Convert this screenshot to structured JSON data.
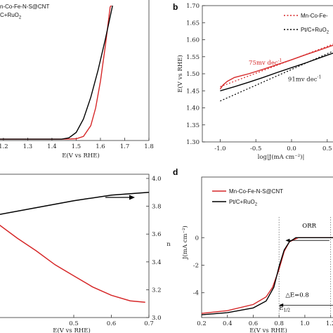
{
  "chart_data": [
    {
      "id": "a",
      "type": "line",
      "panel_letter": "",
      "xlabel": "E(V vs RHE)",
      "xticks": [
        "1.2",
        "1.3",
        "1.4",
        "1.5",
        "1.6",
        "1.7",
        "1.8"
      ],
      "xlim": [
        1.18,
        1.8
      ],
      "ylim": [
        0,
        100
      ],
      "legend": {
        "placement": "top-left",
        "entries": [
          {
            "text": "n-Co-Fe-N-S@CNT",
            "color": "#d62728",
            "dash": "solid",
            "subs": []
          },
          {
            "text": "C+RuO",
            "color": "#000000",
            "dash": "solid",
            "subs": [
              "2"
            ]
          }
        ]
      },
      "series": [
        {
          "color": "#d62728",
          "points": [
            [
              1.18,
              1
            ],
            [
              1.45,
              1
            ],
            [
              1.5,
              1.3
            ],
            [
              1.53,
              3
            ],
            [
              1.56,
              11
            ],
            [
              1.58,
              24
            ],
            [
              1.6,
              44
            ],
            [
              1.62,
              70
            ],
            [
              1.64,
              99
            ],
            [
              1.645,
              100
            ]
          ]
        },
        {
          "color": "#000000",
          "points": [
            [
              1.18,
              1
            ],
            [
              1.44,
              1
            ],
            [
              1.47,
              2
            ],
            [
              1.5,
              6
            ],
            [
              1.53,
              16
            ],
            [
              1.56,
              32
            ],
            [
              1.59,
              52
            ],
            [
              1.62,
              75
            ],
            [
              1.65,
              100
            ]
          ]
        }
      ],
      "grid": false
    },
    {
      "id": "b",
      "type": "line",
      "panel_letter": "b",
      "ylabel": "E(V vs RHE)",
      "xlabel": "log|J(mA cm⁻²)|",
      "yticks": [
        "1.30",
        "1.35",
        "1.40",
        "1.45",
        "1.50",
        "1.55",
        "1.60",
        "1.65",
        "1.70"
      ],
      "xticks": [
        "-1.0",
        "-0.5",
        "0.0",
        "0.5"
      ],
      "xlim": [
        -1.25,
        0.62
      ],
      "ylim": [
        1.3,
        1.7
      ],
      "legend": {
        "placement": "top-right",
        "entries": [
          {
            "text": "Mn-Co-Fe-",
            "color": "#d62728",
            "dash": "dot",
            "subs": []
          },
          {
            "text": "Pt/C+RuO",
            "color": "#000000",
            "dash": "dot",
            "subs": [
              "2"
            ]
          }
        ]
      },
      "annotations": [
        {
          "text": "75mv dec",
          "sup": "-1",
          "color": "#d62728",
          "x": -0.6,
          "y": 1.527
        },
        {
          "text": "91mv dec",
          "sup": "-1",
          "color": "#222222",
          "x": -0.05,
          "y": 1.478
        }
      ],
      "series": [
        {
          "color": "#d62728",
          "points": [
            [
              -1.0,
              1.455
            ],
            [
              -0.96,
              1.467
            ],
            [
              -0.9,
              1.478
            ],
            [
              -0.8,
              1.489
            ],
            [
              -0.6,
              1.5
            ],
            [
              -0.4,
              1.513
            ],
            [
              -0.2,
              1.527
            ],
            [
              0.0,
              1.541
            ],
            [
              0.2,
              1.556
            ],
            [
              0.4,
              1.57
            ],
            [
              0.6,
              1.585
            ]
          ]
        },
        {
          "color": "#000000",
          "points": [
            [
              -1.0,
              1.45
            ],
            [
              -0.8,
              1.462
            ],
            [
              -0.6,
              1.475
            ],
            [
              -0.4,
              1.489
            ],
            [
              -0.2,
              1.504
            ],
            [
              0.0,
              1.518
            ],
            [
              0.2,
              1.532
            ],
            [
              0.4,
              1.547
            ],
            [
              0.6,
              1.562
            ]
          ]
        }
      ],
      "grid": false
    },
    {
      "id": "c",
      "type": "line",
      "panel_letter": "",
      "xlabel": "E(V vs RHE)",
      "ylabel_right": "n",
      "xticks": [
        "0.5",
        "0.6",
        "0.7"
      ],
      "xlim": [
        0.3,
        0.7
      ],
      "yticks_right": [
        "3.0",
        "3.2",
        "3.4",
        "3.6",
        "3.8",
        "4.0"
      ],
      "ylim_right": [
        3.0,
        4.0
      ],
      "series": [
        {
          "color": "#000000",
          "points": [
            [
              0.3,
              3.74
            ],
            [
              0.4,
              3.79
            ],
            [
              0.5,
              3.84
            ],
            [
              0.6,
              3.88
            ],
            [
              0.7,
              3.9
            ]
          ]
        },
        {
          "color": "#d62728",
          "points": [
            [
              0.3,
              3.67
            ],
            [
              0.35,
              3.57
            ],
            [
              0.4,
              3.48
            ],
            [
              0.45,
              3.38
            ],
            [
              0.5,
              3.3
            ],
            [
              0.55,
              3.22
            ],
            [
              0.6,
              3.16
            ],
            [
              0.65,
              3.12
            ],
            [
              0.69,
              3.11
            ]
          ]
        }
      ],
      "grid": false
    },
    {
      "id": "d",
      "type": "line",
      "panel_letter": "d",
      "ylabel": "J(mA cm⁻²)",
      "xlabel": "E(V vs RHE)",
      "xticks": [
        "0.2",
        "0.4",
        "0.6",
        "0.8",
        "1.0",
        "1.2"
      ],
      "xlim": [
        0.2,
        1.24
      ],
      "ylim": [
        -5.8,
        4.4
      ],
      "yticks": [
        {
          "label": "0",
          "value": 0
        },
        {
          "label": "-2",
          "value": -2
        },
        {
          "label": "-4",
          "value": -4
        }
      ],
      "legend": {
        "placement": "top-left",
        "entries": [
          {
            "text": "Mn-Co-Fe-N-S@CNT",
            "color": "#d62728",
            "dash": "solid",
            "subs": []
          },
          {
            "text": "Pt/C+RuO",
            "color": "#000000",
            "dash": "solid",
            "subs": [
              "2"
            ]
          }
        ]
      },
      "annotations": [
        {
          "text": "ORR",
          "color": "#000000",
          "x": 0.98,
          "y": 0.72
        },
        {
          "text": "△E=0.8",
          "color": "#000000",
          "x": 0.85,
          "y": -4.3
        },
        {
          "text": "E",
          "sub": "1/2",
          "color": "#000000",
          "x": 0.8,
          "y": -5.25
        }
      ],
      "series": [
        {
          "color": "#d62728",
          "points": [
            [
              0.2,
              -5.5
            ],
            [
              0.4,
              -5.3
            ],
            [
              0.6,
              -4.85
            ],
            [
              0.7,
              -4.3
            ],
            [
              0.75,
              -3.6
            ],
            [
              0.8,
              -2.3
            ],
            [
              0.84,
              -1.0
            ],
            [
              0.88,
              -0.3
            ],
            [
              0.95,
              0
            ],
            [
              1.24,
              0
            ]
          ]
        },
        {
          "color": "#000000",
          "points": [
            [
              0.2,
              -5.6
            ],
            [
              0.4,
              -5.45
            ],
            [
              0.6,
              -5.1
            ],
            [
              0.7,
              -4.6
            ],
            [
              0.76,
              -3.6
            ],
            [
              0.8,
              -2.1
            ],
            [
              0.84,
              -0.9
            ],
            [
              0.88,
              -0.3
            ],
            [
              0.93,
              0
            ],
            [
              1.24,
              0
            ]
          ]
        }
      ],
      "grid": false
    }
  ]
}
